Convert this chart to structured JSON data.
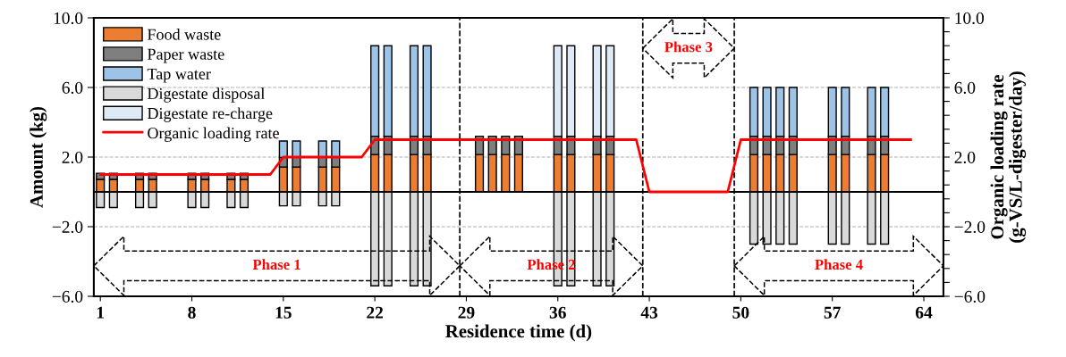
{
  "chart_data": {
    "type": "bar",
    "stacked": true,
    "xlabel": "Residence time (d)",
    "ylabel": "Amount (kg)",
    "y2label": "Organic loading rate\n(g-VS/L-digester/day)",
    "x": [
      1,
      2,
      4,
      5,
      8,
      9,
      11,
      12,
      15,
      16,
      18,
      19,
      22,
      23,
      25,
      26,
      30,
      31,
      32,
      33,
      36,
      37,
      39,
      40,
      51,
      52,
      53,
      54,
      57,
      58,
      60,
      61
    ],
    "xlim": [
      0.5,
      65.5
    ],
    "xticks": [
      1,
      8,
      15,
      22,
      29,
      36,
      43,
      50,
      57,
      64
    ],
    "ylim": [
      -6,
      10
    ],
    "yticks": [
      {
        "value": -6,
        "label": "−6.0"
      },
      {
        "value": -2,
        "label": "−2.0"
      },
      {
        "value": 2,
        "label": "2.0"
      },
      {
        "value": 6,
        "label": "6.0"
      },
      {
        "value": 10,
        "label": "10.0"
      }
    ],
    "y2lim": [
      -6,
      10
    ],
    "y2ticks": [
      {
        "value": -6,
        "label": "−6.0"
      },
      {
        "value": -5.2,
        "label": null
      },
      {
        "value": -4.4,
        "label": null
      },
      {
        "value": -3.6,
        "label": null
      },
      {
        "value": -2.8,
        "label": null
      },
      {
        "value": -2,
        "label": "−2.0"
      },
      {
        "value": -1.2,
        "label": null
      },
      {
        "value": -0.4,
        "label": null
      },
      {
        "value": 0.4,
        "label": null
      },
      {
        "value": 1.2,
        "label": null
      },
      {
        "value": 2,
        "label": "2.0"
      },
      {
        "value": 2.8,
        "label": null
      },
      {
        "value": 3.6,
        "label": null
      },
      {
        "value": 4.4,
        "label": null
      },
      {
        "value": 5.2,
        "label": null
      },
      {
        "value": 6,
        "label": "6.0"
      },
      {
        "value": 6.8,
        "label": null
      },
      {
        "value": 7.6,
        "label": null
      },
      {
        "value": 8.4,
        "label": null
      },
      {
        "value": 9.2,
        "label": null
      },
      {
        "value": 10,
        "label": "10.0"
      }
    ],
    "grid": "y",
    "legend": "top left",
    "series": [
      {
        "name": "Food waste",
        "color": "#ed7d31",
        "values": [
          0.72,
          0.72,
          0.72,
          0.72,
          0.72,
          0.72,
          0.72,
          0.72,
          1.43,
          1.43,
          1.43,
          1.43,
          2.15,
          2.15,
          2.15,
          2.15,
          2.15,
          2.15,
          2.15,
          2.15,
          2.15,
          2.15,
          2.15,
          2.15,
          2.15,
          2.15,
          2.15,
          2.15,
          2.15,
          2.15,
          2.15,
          2.15
        ]
      },
      {
        "name": "Paper waste",
        "color": "#7f7f7f",
        "values": [
          0.35,
          0.35,
          0.35,
          0.35,
          0.35,
          0.35,
          0.35,
          0.35,
          0.55,
          0.55,
          0.55,
          0.55,
          1.05,
          1.05,
          1.05,
          1.05,
          1.05,
          1.05,
          1.05,
          1.05,
          1.05,
          1.05,
          1.05,
          1.05,
          1.05,
          1.05,
          1.05,
          1.05,
          1.05,
          1.05,
          1.05,
          1.05
        ]
      },
      {
        "name": "Tap water",
        "color": "#9dc3e6",
        "values": [
          null,
          null,
          null,
          null,
          null,
          null,
          null,
          null,
          0.94,
          0.94,
          0.94,
          0.94,
          5.2,
          5.2,
          5.2,
          5.2,
          null,
          null,
          null,
          null,
          null,
          null,
          null,
          null,
          2.8,
          2.8,
          2.8,
          2.8,
          2.8,
          2.8,
          2.8,
          2.8
        ]
      },
      {
        "name": "Digestate disposal",
        "color": "#d9d9d9",
        "values": [
          -0.9,
          -0.9,
          -0.9,
          -0.9,
          -0.9,
          -0.9,
          -0.9,
          -0.9,
          -0.8,
          -0.8,
          -0.8,
          -0.8,
          -5.4,
          -5.4,
          -5.4,
          -5.4,
          null,
          null,
          null,
          null,
          -5.4,
          -5.4,
          -5.4,
          -5.4,
          -3.0,
          -3.0,
          -3.0,
          -3.0,
          -3.0,
          -3.0,
          -3.0,
          -3.0
        ]
      },
      {
        "name": "Digestate re-charge",
        "color": "#deebf7",
        "values": [
          null,
          null,
          null,
          null,
          null,
          null,
          null,
          null,
          null,
          null,
          null,
          null,
          null,
          null,
          null,
          null,
          null,
          null,
          null,
          null,
          5.2,
          5.2,
          5.2,
          5.2,
          null,
          null,
          null,
          null,
          null,
          null,
          null,
          null
        ]
      },
      {
        "name": "Organic loading rate",
        "type": "line",
        "axis": "y2",
        "color": "#ff0000",
        "line_style": "solid",
        "marker": "none",
        "x": [
          1,
          14,
          15,
          21,
          22,
          42,
          43,
          49,
          50,
          63
        ],
        "values": [
          1,
          1,
          2,
          2,
          3,
          3,
          0,
          0,
          3,
          3
        ]
      }
    ],
    "ref_lines": [
      {
        "axis": "x",
        "value": 28.5,
        "line_style": "dashed",
        "color": "#000000"
      },
      {
        "axis": "x",
        "value": 42.5,
        "line_style": "dashed",
        "color": "#000000"
      },
      {
        "axis": "x",
        "value": 49.5,
        "line_style": "dashed",
        "color": "#000000"
      }
    ],
    "annotations": [
      "Phase 1",
      "Phase 2",
      "Phase 3",
      "Phase 4"
    ]
  }
}
